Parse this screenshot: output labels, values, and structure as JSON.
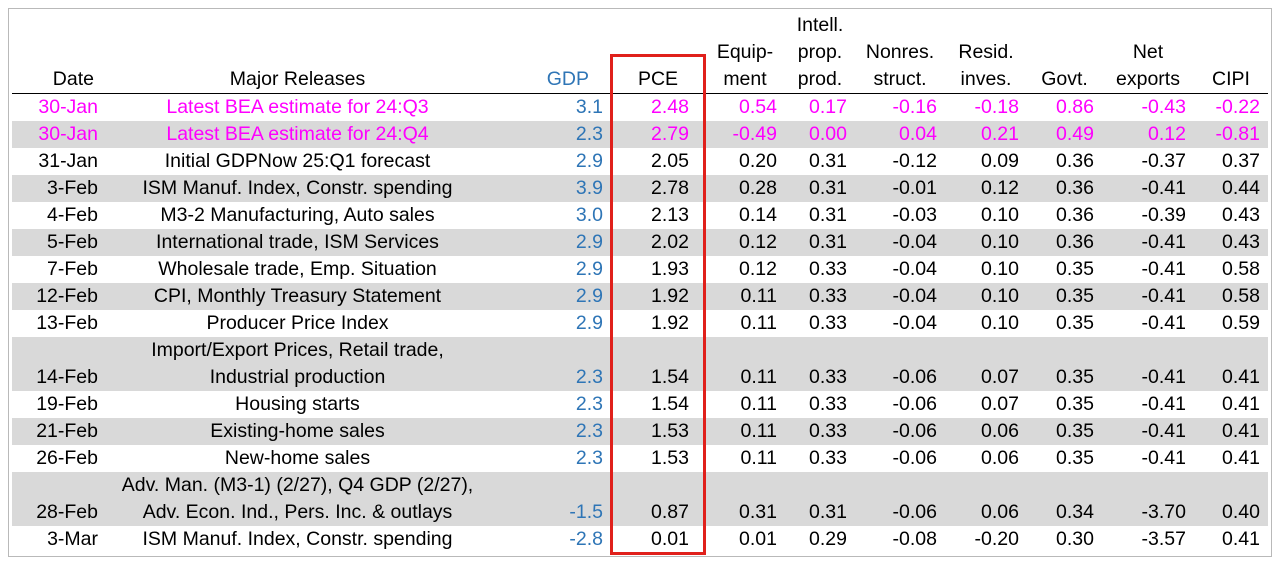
{
  "chart_data": {
    "type": "table",
    "title": "",
    "colors": {
      "gdp": "#2e75b6",
      "highlight_rows": "#ff00ff",
      "shade": "#d9d9d9",
      "pce_box": "#e0201b"
    },
    "columns": [
      {
        "key": "date",
        "label": "Date"
      },
      {
        "key": "release",
        "label": "Major Releases"
      },
      {
        "key": "gdp",
        "label": "GDP"
      },
      {
        "key": "pce",
        "label": "PCE"
      },
      {
        "key": "equip",
        "label": "Equip-\nment"
      },
      {
        "key": "ipp",
        "label": "Intell.\nprop.\nprod."
      },
      {
        "key": "nonres",
        "label": "Nonres.\nstruct."
      },
      {
        "key": "resid",
        "label": "Resid.\ninves."
      },
      {
        "key": "govt",
        "label": "Govt."
      },
      {
        "key": "netexp",
        "label": "Net\nexports"
      },
      {
        "key": "cipi",
        "label": "CIPI"
      }
    ],
    "rows": [
      {
        "date": "30-Jan",
        "release": "Latest BEA estimate for 24:Q3",
        "gdp": "3.1",
        "pce": "2.48",
        "equip": "0.54",
        "ipp": "0.17",
        "nonres": "-0.16",
        "resid": "-0.18",
        "govt": "0.86",
        "netexp": "-0.43",
        "cipi": "-0.22",
        "highlight": true
      },
      {
        "date": "30-Jan",
        "release": "Latest BEA estimate for 24:Q4",
        "gdp": "2.3",
        "pce": "2.79",
        "equip": "-0.49",
        "ipp": "0.00",
        "nonres": "0.04",
        "resid": "0.21",
        "govt": "0.49",
        "netexp": "0.12",
        "cipi": "-0.81",
        "highlight": true
      },
      {
        "date": "31-Jan",
        "release": "Initial GDPNow 25:Q1 forecast",
        "gdp": "2.9",
        "pce": "2.05",
        "equip": "0.20",
        "ipp": "0.31",
        "nonres": "-0.12",
        "resid": "0.09",
        "govt": "0.36",
        "netexp": "-0.37",
        "cipi": "0.37"
      },
      {
        "date": "3-Feb",
        "release": "ISM Manuf. Index, Constr. spending",
        "gdp": "3.9",
        "pce": "2.78",
        "equip": "0.28",
        "ipp": "0.31",
        "nonres": "-0.01",
        "resid": "0.12",
        "govt": "0.36",
        "netexp": "-0.41",
        "cipi": "0.44"
      },
      {
        "date": "4-Feb",
        "release": "M3-2 Manufacturing, Auto sales",
        "gdp": "3.0",
        "pce": "2.13",
        "equip": "0.14",
        "ipp": "0.31",
        "nonres": "-0.03",
        "resid": "0.10",
        "govt": "0.36",
        "netexp": "-0.39",
        "cipi": "0.43"
      },
      {
        "date": "5-Feb",
        "release": "International trade, ISM Services",
        "gdp": "2.9",
        "pce": "2.02",
        "equip": "0.12",
        "ipp": "0.31",
        "nonres": "-0.04",
        "resid": "0.10",
        "govt": "0.36",
        "netexp": "-0.41",
        "cipi": "0.43"
      },
      {
        "date": "7-Feb",
        "release": "Wholesale trade, Emp. Situation",
        "gdp": "2.9",
        "pce": "1.93",
        "equip": "0.12",
        "ipp": "0.33",
        "nonres": "-0.04",
        "resid": "0.10",
        "govt": "0.35",
        "netexp": "-0.41",
        "cipi": "0.58"
      },
      {
        "date": "12-Feb",
        "release": "CPI, Monthly Treasury Statement",
        "gdp": "2.9",
        "pce": "1.92",
        "equip": "0.11",
        "ipp": "0.33",
        "nonres": "-0.04",
        "resid": "0.10",
        "govt": "0.35",
        "netexp": "-0.41",
        "cipi": "0.58"
      },
      {
        "date": "13-Feb",
        "release": "Producer Price Index",
        "gdp": "2.9",
        "pce": "1.92",
        "equip": "0.11",
        "ipp": "0.33",
        "nonres": "-0.04",
        "resid": "0.10",
        "govt": "0.35",
        "netexp": "-0.41",
        "cipi": "0.59"
      },
      {
        "date": "14-Feb",
        "release": "Import/Export Prices, Retail trade,\nIndustrial production",
        "gdp": "2.3",
        "pce": "1.54",
        "equip": "0.11",
        "ipp": "0.33",
        "nonres": "-0.06",
        "resid": "0.07",
        "govt": "0.35",
        "netexp": "-0.41",
        "cipi": "0.41"
      },
      {
        "date": "19-Feb",
        "release": "Housing starts",
        "gdp": "2.3",
        "pce": "1.54",
        "equip": "0.11",
        "ipp": "0.33",
        "nonres": "-0.06",
        "resid": "0.07",
        "govt": "0.35",
        "netexp": "-0.41",
        "cipi": "0.41"
      },
      {
        "date": "21-Feb",
        "release": "Existing-home sales",
        "gdp": "2.3",
        "pce": "1.53",
        "equip": "0.11",
        "ipp": "0.33",
        "nonres": "-0.06",
        "resid": "0.06",
        "govt": "0.35",
        "netexp": "-0.41",
        "cipi": "0.41"
      },
      {
        "date": "26-Feb",
        "release": "New-home sales",
        "gdp": "2.3",
        "pce": "1.53",
        "equip": "0.11",
        "ipp": "0.33",
        "nonres": "-0.06",
        "resid": "0.06",
        "govt": "0.35",
        "netexp": "-0.41",
        "cipi": "0.41"
      },
      {
        "date": "28-Feb",
        "release": "Adv. Man. (M3-1) (2/27), Q4 GDP (2/27),\nAdv. Econ. Ind., Pers. Inc. & outlays",
        "gdp": "-1.5",
        "pce": "0.87",
        "equip": "0.31",
        "ipp": "0.31",
        "nonres": "-0.06",
        "resid": "0.06",
        "govt": "0.34",
        "netexp": "-3.70",
        "cipi": "0.40"
      },
      {
        "date": "3-Mar",
        "release": "ISM Manuf. Index, Constr. spending",
        "gdp": "-2.8",
        "pce": "0.01",
        "equip": "0.01",
        "ipp": "0.29",
        "nonres": "-0.08",
        "resid": "-0.20",
        "govt": "0.30",
        "netexp": "-3.57",
        "cipi": "0.41"
      }
    ]
  }
}
